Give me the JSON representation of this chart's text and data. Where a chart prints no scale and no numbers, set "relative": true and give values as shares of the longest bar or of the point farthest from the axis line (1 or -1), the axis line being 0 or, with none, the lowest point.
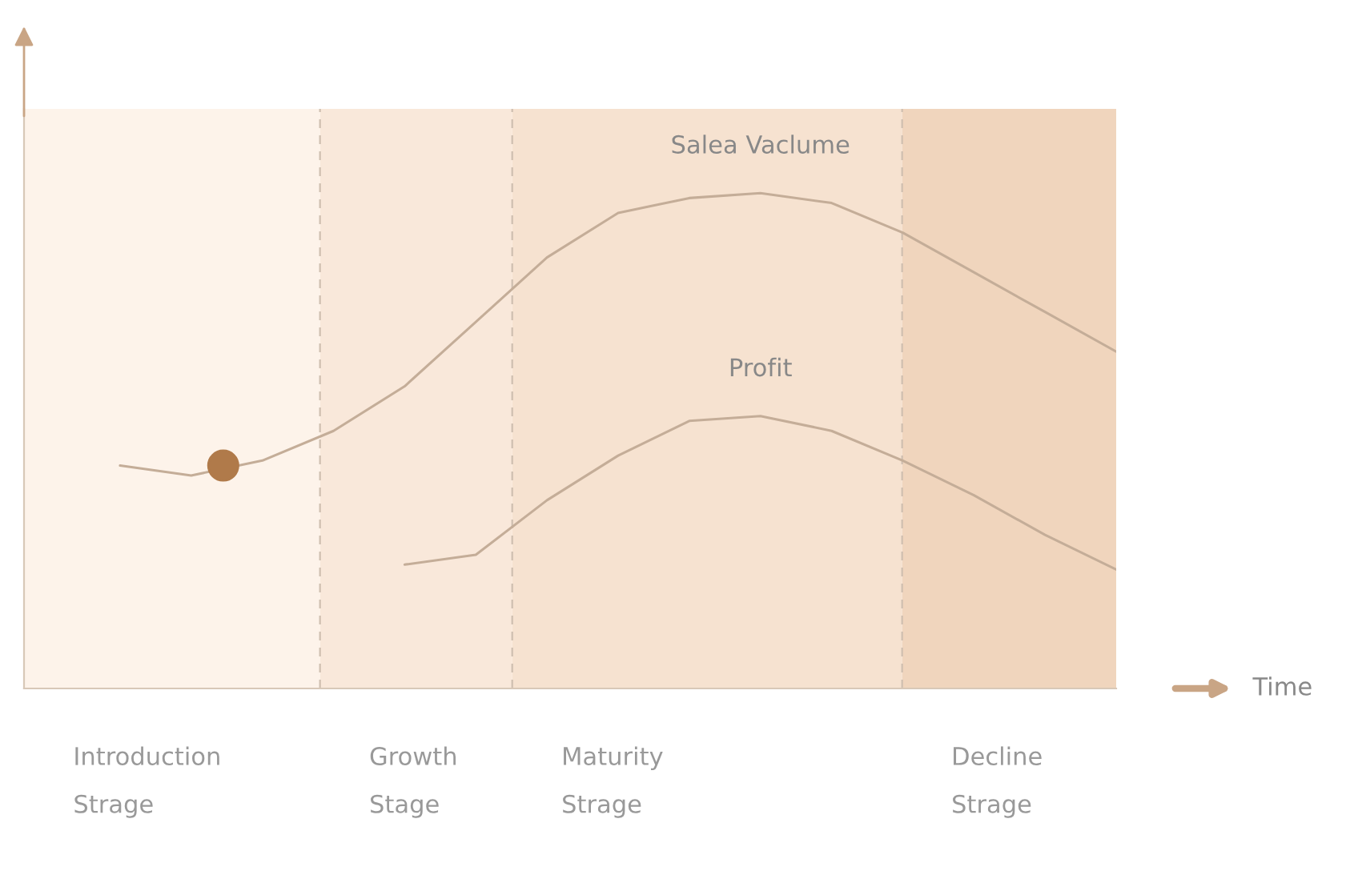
{
  "chart_data": {
    "type": "line",
    "relative": true,
    "categories": [
      null,
      null,
      null,
      null,
      null,
      null,
      null,
      null,
      null,
      null,
      null,
      null,
      null,
      null,
      null
    ],
    "series": [
      {
        "name": "Salea Vaclume",
        "color": "#c4ad98",
        "values": [
          0.45,
          0.43,
          0.46,
          0.52,
          0.61,
          0.74,
          0.87,
          0.96,
          0.99,
          1.0,
          0.98,
          0.92,
          0.84,
          0.76,
          0.68
        ]
      },
      {
        "name": "Profit",
        "color": "#c4ad98",
        "values": [
          null,
          null,
          null,
          null,
          0.25,
          0.27,
          0.38,
          0.47,
          0.54,
          0.55,
          0.52,
          0.46,
          0.39,
          0.31,
          0.24
        ]
      }
    ],
    "annotations": [
      "Time",
      "Introduction\nStrage",
      "Growth\nStage",
      "Maturity\nStrage",
      "Decline\nStrage"
    ]
  }
}
